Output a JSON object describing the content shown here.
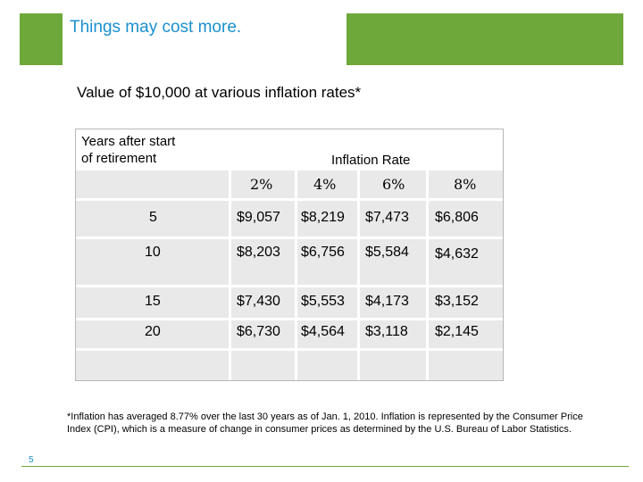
{
  "title": "Things may cost more.",
  "subtitle": "Value of $10,000 at various inflation rates*",
  "table": {
    "corner_label": [
      "Years after start",
      "of retirement"
    ],
    "group_header": "Inflation Rate",
    "rates": [
      "2%",
      "4%",
      "6%",
      "8%"
    ],
    "rows": [
      {
        "years": "5",
        "values": [
          "$9,057",
          "$8,219",
          "$7,473",
          "$6,806"
        ]
      },
      {
        "years": "10",
        "values": [
          "$8,203",
          "$6,756",
          "$5,584",
          "$4,632"
        ]
      },
      {
        "years": "15",
        "values": [
          "$7,430",
          "$5,553",
          "$4,173",
          "$3,152"
        ]
      },
      {
        "years": "20",
        "values": [
          "$6,730",
          "$4,564",
          "$3,118",
          "$2,145"
        ]
      }
    ]
  },
  "footnote": "*Inflation has averaged 8.77% over the last 30 years as of Jan. 1, 2010. Inflation is represented by the Consumer Price Index (CPI), which is a measure of change in consumer prices as determined by the U.S. Bureau of Labor Statistics.",
  "page_number": "5",
  "colors": {
    "accent_green": "#6fa83a",
    "title_blue": "#1a8fcf",
    "row_gray": "#e9e9e9"
  }
}
